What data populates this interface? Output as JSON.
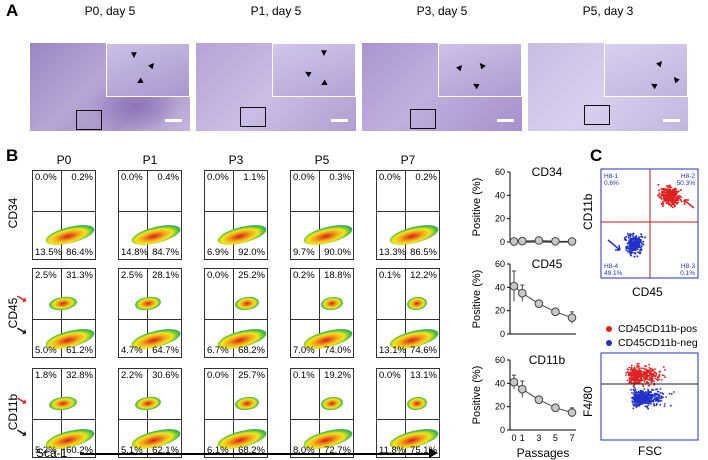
{
  "panelA": {
    "label": "A",
    "panels": [
      {
        "title": "P0, day 5"
      },
      {
        "title": "P1, day 5"
      },
      {
        "title": "P3, day 5"
      },
      {
        "title": "P5, day 3"
      }
    ]
  },
  "panelB": {
    "label": "B",
    "columns": [
      "P0",
      "P1",
      "P3",
      "P5",
      "P7"
    ],
    "x_axis_label": "Sca-1",
    "rows": [
      {
        "marker": "CD34",
        "cells": [
          {
            "ul": "0.0%",
            "ur": "0.2%",
            "ll": "13.5%",
            "lr": "86.4%"
          },
          {
            "ul": "0.0%",
            "ur": "0.4%",
            "ll": "14.8%",
            "lr": "84.7%"
          },
          {
            "ul": "0.0%",
            "ur": "1.1%",
            "ll": "6.9%",
            "lr": "92.0%"
          },
          {
            "ul": "0.0%",
            "ur": "0.3%",
            "ll": "9.7%",
            "lr": "90.0%"
          },
          {
            "ul": "0.0%",
            "ur": "0.2%",
            "ll": "13.3%",
            "lr": "86.5%"
          }
        ]
      },
      {
        "marker": "CD45",
        "cells": [
          {
            "ul": "2.5%",
            "ur": "31.3%",
            "ll": "5.0%",
            "lr": "61.2%"
          },
          {
            "ul": "2.5%",
            "ur": "28.1%",
            "ll": "4.7%",
            "lr": "64.7%"
          },
          {
            "ul": "0.0%",
            "ur": "25.2%",
            "ll": "6.7%",
            "lr": "68.2%"
          },
          {
            "ul": "0.2%",
            "ur": "18.8%",
            "ll": "7.0%",
            "lr": "74.0%"
          },
          {
            "ul": "0.1%",
            "ur": "12.2%",
            "ll": "13.1%",
            "lr": "74.6%"
          }
        ]
      },
      {
        "marker": "CD11b",
        "cells": [
          {
            "ul": "1.8%",
            "ur": "32.8%",
            "ll": "5.2%",
            "lr": "60.2%"
          },
          {
            "ul": "2.2%",
            "ur": "30.6%",
            "ll": "5.1%",
            "lr": "62.1%"
          },
          {
            "ul": "0.0%",
            "ur": "25.7%",
            "ll": "6.1%",
            "lr": "68.2%"
          },
          {
            "ul": "0.1%",
            "ur": "19.2%",
            "ll": "8.0%",
            "lr": "72.7%"
          },
          {
            "ul": "0.0%",
            "ur": "13.1%",
            "ll": "11.8%",
            "lr": "75.1%"
          }
        ]
      }
    ]
  },
  "chart_data": [
    {
      "type": "line",
      "title": "CD34",
      "ylabel": "Positive (%)",
      "xlabel": "",
      "x": [
        0,
        1,
        3,
        5,
        7
      ],
      "values": [
        0.5,
        0.8,
        1.3,
        0.6,
        0.5
      ],
      "y_ticks": [
        "0",
        "20",
        "40",
        "60"
      ],
      "ylim": [
        0,
        60
      ]
    },
    {
      "type": "line",
      "title": "CD45",
      "ylabel": "Positive (%)",
      "xlabel": "",
      "x": [
        0,
        1,
        3,
        5,
        7
      ],
      "values": [
        41,
        35,
        26,
        19,
        14
      ],
      "errors": [
        13,
        7,
        3,
        3,
        5
      ],
      "y_ticks": [
        "0",
        "20",
        "40",
        "60"
      ],
      "ylim": [
        0,
        60
      ]
    },
    {
      "type": "line",
      "title": "CD11b",
      "ylabel": "Positive (%)",
      "xlabel": "Passages",
      "x": [
        0,
        1,
        3,
        5,
        7
      ],
      "x_tick_labels": [
        "0",
        "1",
        "3",
        "5",
        "7"
      ],
      "values": [
        41,
        35,
        26,
        19,
        15
      ],
      "errors": [
        6,
        7,
        3,
        3,
        4
      ],
      "y_ticks": [
        "0",
        "20",
        "40",
        "60"
      ],
      "ylim": [
        0,
        60
      ]
    }
  ],
  "panelC": {
    "label": "C",
    "top_plot": {
      "y_label": "CD11b",
      "x_label": "CD45",
      "gates": {
        "ul": "H8-1",
        "ul_val": "0.6%",
        "ur": "H8-2",
        "ur_val": "50.3%",
        "ll": "H8-4",
        "ll_val": "49.1%",
        "lr": "H8-3",
        "lr_val": "0.1%"
      }
    },
    "legend": [
      {
        "label": "CD45CD11b-pos",
        "color": "#e02020"
      },
      {
        "label": "CD45CD11b-neg",
        "color": "#2030c8"
      }
    ],
    "bottom_plot": {
      "y_label": "F4/80",
      "x_label": "FSC"
    }
  }
}
